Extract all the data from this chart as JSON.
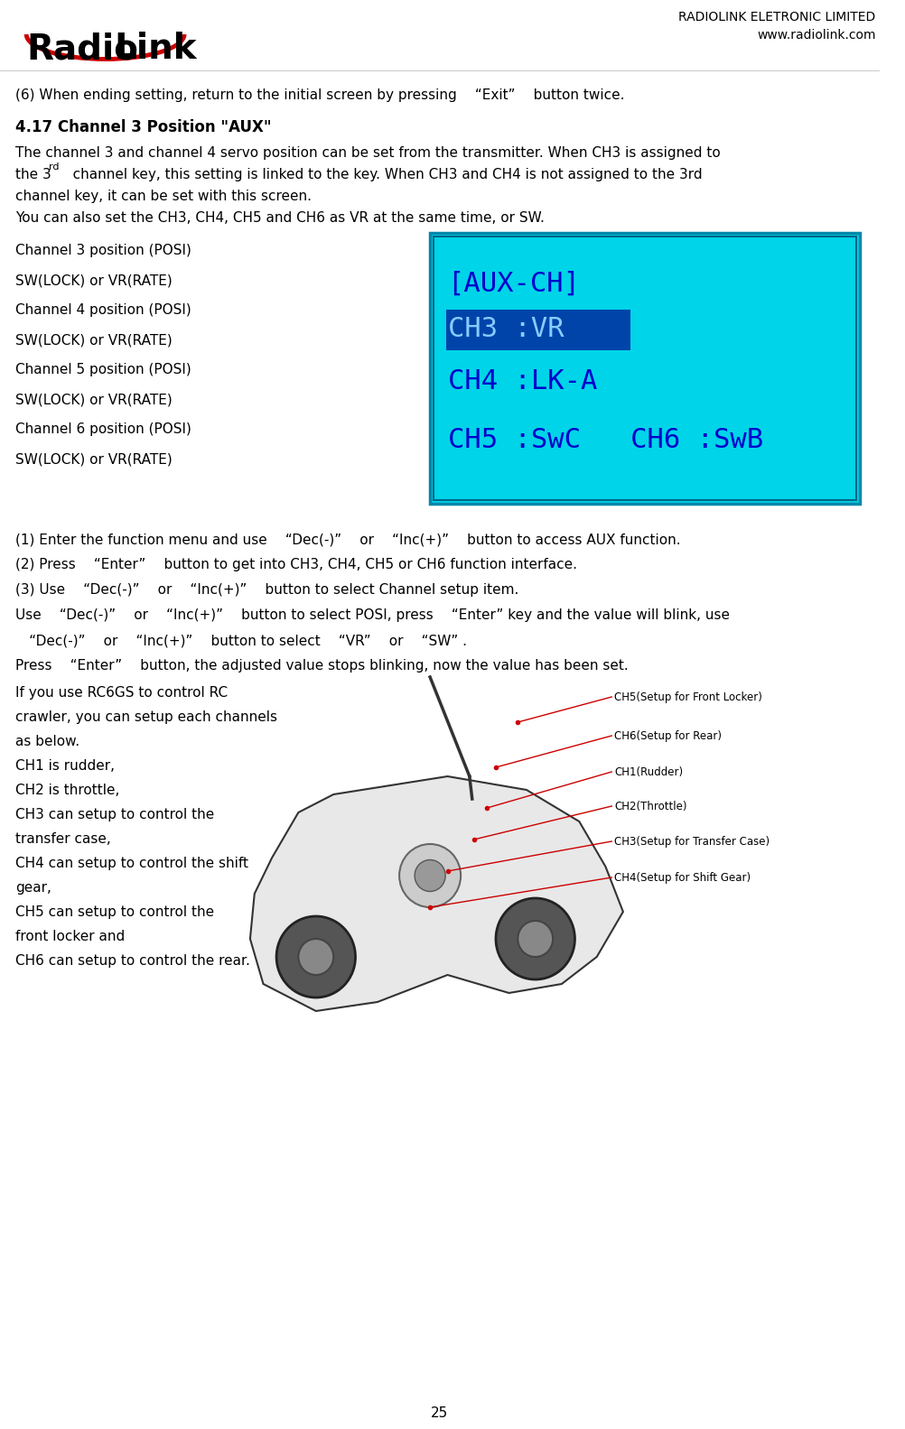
{
  "page_number": "25",
  "company_name": "RADIOLINK ELETRONIC LIMITED",
  "website": "www.radiolink.com",
  "line6_text": "(6) When ending setting, return to the initial screen by pressing  “Exit”  button twice.",
  "section_title": "4.17 Channel 3 Position \"AUX\"",
  "para1_line1": "The channel 3 and channel 4 servo position can be set from the transmitter. When CH3 is assigned to",
  "para1_line2": "the 3rd    channel key, this setting is linked to the key. When CH3 and CH4 is not assigned to the 3rd",
  "para1_line3": "channel key, it can be set with this screen.",
  "para2": "You can also set the CH3, CH4, CH5 and CH6 as VR at the same time, or SW.",
  "left_list": [
    "Channel 3 position (POSI)",
    "SW(LOCK) or VR(RATE)",
    "Channel 4 position (POSI)",
    "SW(LOCK) or VR(RATE)",
    "Channel 5 position (POSI)",
    "SW(LOCK) or VR(RATE)",
    "Channel 6 position (POSI)",
    "SW(LOCK) or VR(RATE)"
  ],
  "steps": [
    "(1) Enter the function menu and use  “Dec(-)”  or  “Inc(+)”  button to access AUX function.",
    "(2) Press  “Enter”  button to get into CH3, CH4, CH5 or CH6 function interface.",
    "(3) Use  “Dec(-)”  or  “Inc(+)”  button to select Channel setup item.",
    "Use  “Dec(-)”  or  “Inc(+)”  button to select POSI, press  “Enter” key and the value will blink, use",
    " “Dec(-)”  or  “Inc(+)”  button to select  “VR”  or  “SW” .",
    "Press  “Enter”  button, the adjusted value stops blinking, now the value has been set."
  ],
  "rc_text_lines": [
    "If you use RC6GS to control RC",
    "crawler, you can setup each channels",
    "as below.",
    "CH1 is rudder,",
    "CH2 is throttle,",
    "CH3 can setup to control the",
    "transfer case,",
    "CH4 can setup to control the shift",
    "gear,",
    "CH5 can setup to control the",
    "front locker and",
    "CH6 can setup to control the rear."
  ],
  "ch_labels": [
    "CH5(Setup for Front Locker)",
    "CH6(Setup for Rear)",
    "CH1(Rudder)",
    "CH2(Throttle)",
    "CH3(Setup for Transfer Case)",
    "CH4(Setup for Shift Gear)"
  ],
  "bg_color": "#ffffff",
  "text_color": "#000000",
  "lcd_bg_color": "#00d4e8",
  "lcd_border_color": "#0088aa",
  "lcd_text_color": "#0000cc",
  "lcd_highlight_color": "#0055bb",
  "red_color": "#cc0000"
}
